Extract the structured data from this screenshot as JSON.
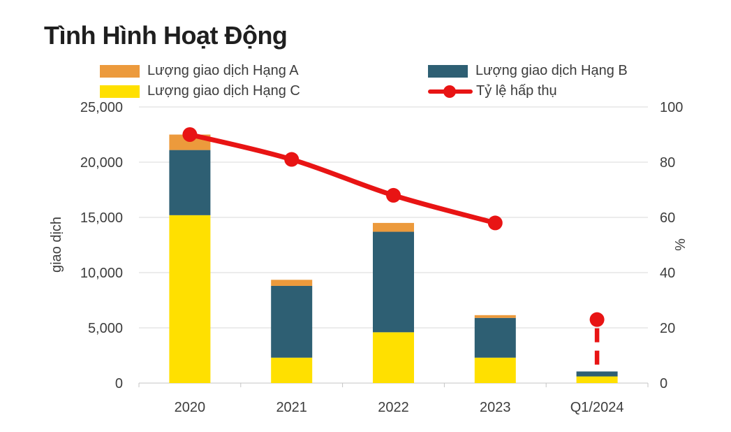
{
  "title": "Tình Hình Hoạt Động",
  "legend": [
    {
      "label": "Lượng giao dịch Hạng A",
      "color": "#EC9A3C"
    },
    {
      "label": "Lượng giao dịch Hạng B",
      "color": "#2E5F73"
    },
    {
      "label": "Lượng giao dịch Hạng C",
      "color": "#FFE000"
    },
    {
      "label": "Tỷ lệ hấp thụ",
      "color": "#E81414"
    }
  ],
  "chart_data": {
    "type": "combo-stacked-bar-line",
    "categories": [
      "2020",
      "2021",
      "2022",
      "2023",
      "Q1/2024"
    ],
    "series": [
      {
        "name": "Lượng giao dịch Hạng C",
        "type": "bar",
        "color": "#FFE000",
        "values": [
          15200,
          2300,
          4600,
          2300,
          600
        ]
      },
      {
        "name": "Lượng giao dịch Hạng B",
        "type": "bar",
        "color": "#2E5F73",
        "values": [
          5900,
          6500,
          9100,
          3600,
          450
        ]
      },
      {
        "name": "Lượng giao dịch Hạng A",
        "type": "bar",
        "color": "#EC9A3C",
        "values": [
          1400,
          550,
          800,
          250,
          0
        ]
      },
      {
        "name": "Tỷ lệ hấp thụ",
        "type": "line",
        "axis": "right",
        "color": "#E81414",
        "values": [
          90,
          81,
          68,
          58,
          23
        ],
        "solid_through_index": 3,
        "isolated_point_index": 4
      }
    ],
    "left_axis": {
      "label": "giao dịch",
      "min": 0,
      "max": 25000,
      "step": 5000,
      "tick_labels": [
        "0",
        "5,000",
        "10,000",
        "15,000",
        "20,000",
        "25,000"
      ]
    },
    "right_axis": {
      "label": "%",
      "min": 0,
      "max": 100,
      "step": 20,
      "tick_labels": [
        "0",
        "20",
        "40",
        "60",
        "80",
        "100"
      ]
    },
    "grid": true,
    "legend_position": "top"
  }
}
